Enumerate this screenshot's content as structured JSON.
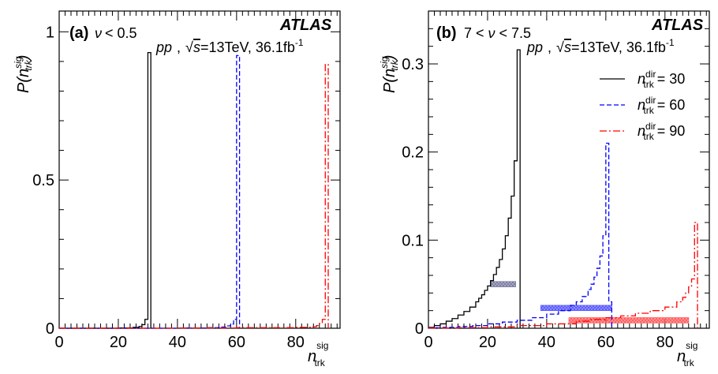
{
  "chart_data": [
    {
      "panel": "(a)",
      "type": "line",
      "step": true,
      "condition_prefix": "ν",
      "condition_suffix": "< 0.5",
      "experiment": "ATLAS",
      "collision": "pp",
      "sqrt_s_prefix": "√",
      "sqrt_s_var": "s",
      "energy": "=13TeV, 36.1fb",
      "lumi_exp": "-1",
      "xlabel_main": "n",
      "xlabel_sup": "sig",
      "xlabel_sub": "trk",
      "ylabel_main": "P(n",
      "ylabel_sup": "sig",
      "ylabel_sub": "trk",
      "ylabel_close": ")",
      "xlim": [
        0,
        95
      ],
      "ylim": [
        0,
        1.07
      ],
      "xticks": [
        0,
        20,
        40,
        60,
        80
      ],
      "xtick_labels": [
        "0",
        "20",
        "40",
        "60",
        "80"
      ],
      "yticks": [
        0,
        0.5,
        1
      ],
      "ytick_labels": [
        "0",
        "0.5",
        "1"
      ],
      "series": [
        {
          "color": "#000000",
          "dash": "",
          "x": [
            0,
            10,
            20,
            25,
            27,
            28,
            29,
            30,
            31
          ],
          "y": [
            0,
            0,
            0.001,
            0.003,
            0.006,
            0.012,
            0.03,
            0.93,
            0
          ]
        },
        {
          "color": "#0000ff",
          "dash": "6,3",
          "x": [
            0,
            20,
            40,
            50,
            55,
            57,
            58,
            59,
            60,
            61
          ],
          "y": [
            0,
            0,
            0.001,
            0.002,
            0.004,
            0.008,
            0.014,
            0.03,
            0.92,
            0
          ]
        },
        {
          "color": "#ff0000",
          "dash": "9,3,2,3",
          "x": [
            0,
            20,
            40,
            60,
            80,
            85,
            87,
            88,
            89,
            90,
            91
          ],
          "y": [
            0,
            0,
            0.001,
            0.002,
            0.003,
            0.005,
            0.009,
            0.016,
            0.03,
            0.89,
            0
          ]
        }
      ]
    },
    {
      "panel": "(b)",
      "type": "line",
      "step": true,
      "condition_prefix": "7 <",
      "condition_var": "ν",
      "condition_suffix": "< 7.5",
      "experiment": "ATLAS",
      "collision": "pp",
      "sqrt_s_prefix": "√",
      "sqrt_s_var": "s",
      "energy": "=13TeV, 36.1fb",
      "lumi_exp": "-1",
      "xlabel_main": "n",
      "xlabel_sup": "sig",
      "xlabel_sub": "trk",
      "ylabel_main": "P(n",
      "ylabel_sup": "sig",
      "ylabel_sub": "trk",
      "ylabel_close": ")",
      "xlim": [
        0,
        95
      ],
      "ylim": [
        0,
        0.36
      ],
      "xticks": [
        0,
        20,
        40,
        60,
        80
      ],
      "xtick_labels": [
        "0",
        "20",
        "40",
        "60",
        "80"
      ],
      "yticks": [
        0,
        0.1,
        0.2,
        0.3
      ],
      "ytick_labels": [
        "0",
        "0.1",
        "0.2",
        "0.3"
      ],
      "legend": [
        {
          "name": "n",
          "sup": "dir",
          "sub": "trk",
          "value": "= 30",
          "color": "#000000",
          "dash": ""
        },
        {
          "name": "n",
          "sup": "dir",
          "sub": "trk",
          "value": "= 60",
          "color": "#0000ff",
          "dash": "6,3"
        },
        {
          "name": "n",
          "sup": "dir",
          "sub": "trk",
          "value": "= 90",
          "color": "#ff0000",
          "dash": "9,3,2,3"
        }
      ],
      "series": [
        {
          "color": "#000000",
          "dash": "",
          "x": [
            0,
            2,
            4,
            6,
            8,
            10,
            12,
            14,
            16,
            17,
            18,
            19,
            20,
            21,
            22,
            23,
            24,
            25,
            26,
            27,
            28,
            29,
            30,
            31
          ],
          "y": [
            0.001,
            0.003,
            0.005,
            0.008,
            0.011,
            0.015,
            0.019,
            0.024,
            0.03,
            0.034,
            0.038,
            0.043,
            0.048,
            0.054,
            0.061,
            0.069,
            0.078,
            0.09,
            0.105,
            0.125,
            0.15,
            0.19,
            0.316,
            0
          ],
          "mean": 25,
          "mean_x_range": [
            21,
            29.5
          ],
          "mean_y": 0.05,
          "mean_y_err": 0.003,
          "band_color": "#7a7aa0"
        },
        {
          "color": "#0000ff",
          "dash": "6,3",
          "x": [
            0,
            5,
            10,
            15,
            20,
            25,
            30,
            35,
            40,
            44,
            48,
            50,
            52,
            54,
            55,
            56,
            57,
            58,
            59,
            60,
            61,
            62
          ],
          "y": [
            0.0005,
            0.001,
            0.002,
            0.003,
            0.005,
            0.007,
            0.009,
            0.012,
            0.016,
            0.02,
            0.026,
            0.03,
            0.036,
            0.044,
            0.05,
            0.058,
            0.068,
            0.082,
            0.105,
            0.21,
            0.03,
            0
          ],
          "mean": 50,
          "mean_x_range": [
            38,
            62
          ],
          "mean_y": 0.023,
          "mean_y_err": 0.003,
          "band_color": "#5555ff"
        },
        {
          "color": "#ff0000",
          "dash": "9,3,2,3",
          "x": [
            0,
            10,
            20,
            30,
            40,
            50,
            55,
            60,
            65,
            70,
            75,
            80,
            84,
            86,
            87,
            88,
            89,
            90,
            91
          ],
          "y": [
            0.0002,
            0.0007,
            0.0015,
            0.003,
            0.005,
            0.008,
            0.01,
            0.012,
            0.014,
            0.017,
            0.02,
            0.024,
            0.03,
            0.035,
            0.04,
            0.047,
            0.056,
            0.12,
            0
          ],
          "mean": 68,
          "mean_x_range": [
            47.5,
            88
          ],
          "mean_y": 0.009,
          "mean_y_err": 0.003,
          "band_color": "#ff5a5a"
        }
      ]
    }
  ]
}
